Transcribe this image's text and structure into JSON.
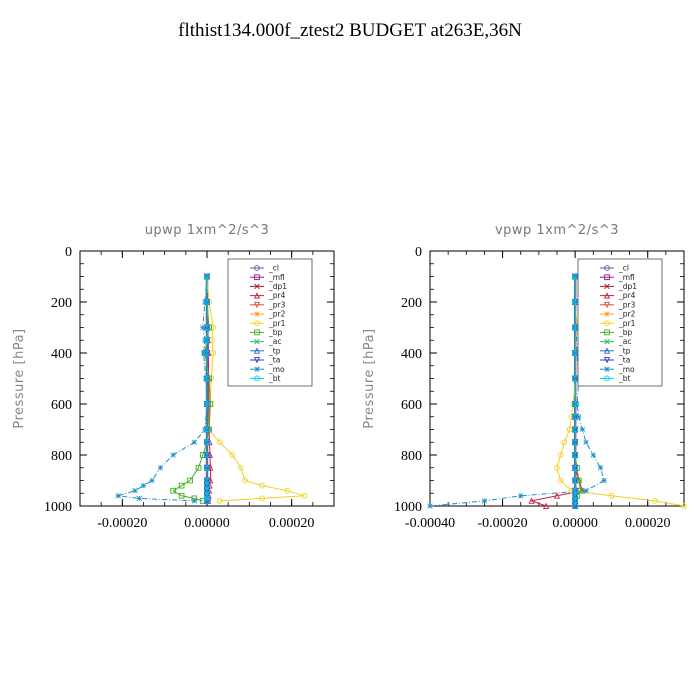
{
  "title": "flthist134.000f_ztest2  BUDGET at263E,36N",
  "legend_entries": [
    "_cl",
    "_mfl",
    "_dp1",
    "_pr4",
    "_pr3",
    "_pr2",
    "_pr1",
    "_bp",
    "_ac",
    "_tp",
    "_ta",
    "_mo",
    "_bt"
  ],
  "series_colors": {
    "_cl": "#7a4e9a",
    "_mfl": "#8b1a8b",
    "_dp1": "#a0203a",
    "_pr4": "#d01a40",
    "_pr3": "#e8503a",
    "_pr2": "#f0a030",
    "_pr1": "#f2d020",
    "_bp": "#40b020",
    "_ac": "#20c060",
    "_tp": "#3060e0",
    "_ta": "#3838c8",
    "_mo": "#1890c8",
    "_bt": "#00d0f0"
  },
  "chart_data": [
    {
      "type": "line",
      "title": "upwp   1xm^2/s^3",
      "ylabel": "Pressure [hPa]",
      "xlim": [
        -0.0003,
        0.0003
      ],
      "ylim": [
        1000,
        0
      ],
      "xticks": [
        "-0.00020",
        "0.00000",
        "0.00020"
      ],
      "yticks": [
        "0",
        "200",
        "400",
        "600",
        "800",
        "1000"
      ],
      "legend_position": "top-right",
      "y": [
        100,
        200,
        300,
        350,
        400,
        500,
        600,
        700,
        750,
        800,
        850,
        900,
        920,
        940,
        960,
        970,
        980
      ],
      "series": [
        {
          "name": "_cl",
          "x": [
            0,
            0,
            0,
            0,
            0,
            0,
            0,
            0,
            0,
            0,
            0,
            0,
            0,
            0,
            0,
            0,
            0
          ]
        },
        {
          "name": "_mfl",
          "x": [
            0,
            0,
            0,
            0,
            0,
            0,
            0,
            0,
            0,
            0,
            0,
            0,
            0,
            0,
            0,
            0,
            0
          ]
        },
        {
          "name": "_dp1",
          "x": [
            0,
            0,
            0,
            0,
            0,
            0,
            0,
            0,
            0,
            0,
            0,
            0,
            0,
            0,
            0,
            0,
            0
          ]
        },
        {
          "name": "_pr4",
          "x": [
            0,
            0,
            2e-06,
            3e-06,
            3e-06,
            4e-06,
            4e-06,
            5e-06,
            6e-06,
            7e-06,
            8e-06,
            8e-06,
            6e-06,
            5e-06,
            4e-06,
            3e-06,
            2e-06
          ]
        },
        {
          "name": "_pr3",
          "x": [
            0,
            0,
            0,
            0,
            0,
            0,
            0,
            0,
            0,
            0,
            0,
            0,
            0,
            0,
            0,
            0,
            0
          ]
        },
        {
          "name": "_pr2",
          "x": [
            0,
            0,
            0,
            0,
            0,
            0,
            0,
            0,
            0,
            0,
            0,
            0,
            0,
            0,
            0,
            0,
            0
          ]
        },
        {
          "name": "_pr1",
          "x": [
            0,
            5e-06,
            1.5e-05,
            1.2e-05,
            1.5e-05,
            1e-05,
            8e-06,
            5e-06,
            3e-05,
            6e-05,
            8e-05,
            9e-05,
            0.00013,
            0.00019,
            0.00023,
            0.00013,
            3e-05
          ]
        },
        {
          "name": "_bp",
          "x": [
            0,
            0,
            5e-06,
            0,
            -5e-06,
            5e-06,
            8e-06,
            5e-06,
            0,
            -1e-05,
            -2e-05,
            -4e-05,
            -6e-05,
            -8e-05,
            -6e-05,
            -3e-05,
            -1e-05
          ]
        },
        {
          "name": "_ac",
          "x": [
            0,
            0,
            0,
            0,
            0,
            0,
            0,
            0,
            0,
            0,
            0,
            0,
            0,
            0,
            0,
            0,
            0
          ]
        },
        {
          "name": "_tp",
          "x": [
            0,
            0,
            0,
            0,
            0,
            0,
            0,
            0,
            0,
            0,
            0,
            0,
            0,
            0,
            0,
            0,
            0
          ]
        },
        {
          "name": "_ta",
          "x": [
            0,
            0,
            0,
            0,
            0,
            0,
            0,
            0,
            0,
            0,
            0,
            0,
            0,
            0,
            0,
            0,
            0
          ]
        },
        {
          "name": "_mo",
          "x": [
            0,
            -5e-06,
            -1e-05,
            -5e-06,
            -8e-06,
            -3e-06,
            0,
            -5e-06,
            -3e-05,
            -8e-05,
            -0.00011,
            -0.00013,
            -0.00015,
            -0.00017,
            -0.00021,
            -0.00016,
            -3e-05
          ]
        },
        {
          "name": "_bt",
          "x": [
            0,
            0,
            0,
            0,
            0,
            0,
            0,
            0,
            0,
            0,
            0,
            0,
            0,
            0,
            0,
            0,
            0
          ]
        }
      ]
    },
    {
      "type": "line",
      "title": "vpwp   1xm^2/s^3",
      "ylabel": "Pressure [hPa]",
      "xlim": [
        -0.0004,
        0.0003
      ],
      "ylim": [
        1000,
        0
      ],
      "xticks": [
        "-0.00040",
        "-0.00020",
        "0.00000",
        "0.00020"
      ],
      "yticks": [
        "0",
        "200",
        "400",
        "600",
        "800",
        "1000"
      ],
      "legend_position": "top-right",
      "y": [
        100,
        200,
        300,
        400,
        500,
        600,
        650,
        700,
        750,
        800,
        850,
        900,
        940,
        960,
        980,
        1000
      ],
      "series": [
        {
          "name": "_cl",
          "x": [
            0,
            0,
            0,
            0,
            0,
            0,
            0,
            0,
            0,
            0,
            0,
            0,
            0,
            0,
            0,
            0
          ]
        },
        {
          "name": "_mfl",
          "x": [
            0,
            0,
            0,
            0,
            0,
            0,
            0,
            0,
            0,
            0,
            0,
            0,
            0,
            0,
            0,
            0
          ]
        },
        {
          "name": "_dp1",
          "x": [
            0,
            0,
            0,
            0,
            0,
            0,
            0,
            0,
            0,
            0,
            0,
            0,
            0,
            0,
            0,
            0
          ]
        },
        {
          "name": "_pr4",
          "x": [
            0,
            0,
            0,
            0,
            0,
            0,
            0,
            0,
            0,
            0,
            0,
            1e-05,
            2e-05,
            -5e-05,
            -0.00012,
            -8e-05
          ]
        },
        {
          "name": "_pr3",
          "x": [
            0,
            0,
            0,
            0,
            0,
            0,
            0,
            0,
            0,
            0,
            0,
            0,
            0,
            0,
            0,
            0
          ]
        },
        {
          "name": "_pr2",
          "x": [
            0,
            0,
            0,
            0,
            0,
            0,
            0,
            0,
            0,
            0,
            0,
            0,
            0,
            0,
            0,
            0
          ]
        },
        {
          "name": "_pr1",
          "x": [
            0,
            0,
            5e-06,
            0,
            0,
            -5e-06,
            -1e-05,
            -1.5e-05,
            -3e-05,
            -4e-05,
            -5e-05,
            -4e-05,
            -1e-05,
            0.0001,
            0.00022,
            0.0003
          ]
        },
        {
          "name": "_bp",
          "x": [
            0,
            0,
            0,
            0,
            0,
            0,
            0,
            0,
            0,
            0,
            5e-06,
            1e-05,
            1.5e-05,
            5e-06,
            0,
            0
          ]
        },
        {
          "name": "_ac",
          "x": [
            0,
            0,
            0,
            0,
            0,
            0,
            0,
            0,
            0,
            0,
            0,
            0,
            0,
            0,
            0,
            0
          ]
        },
        {
          "name": "_tp",
          "x": [
            0,
            0,
            0,
            0,
            0,
            0,
            0,
            0,
            0,
            0,
            0,
            0,
            0,
            0,
            0,
            0
          ]
        },
        {
          "name": "_ta",
          "x": [
            0,
            0,
            0,
            0,
            0,
            0,
            0,
            0,
            0,
            0,
            0,
            0,
            0,
            0,
            0,
            0
          ]
        },
        {
          "name": "_mo",
          "x": [
            0,
            0,
            3e-06,
            5e-06,
            1e-05,
            5e-06,
            1e-05,
            2e-05,
            3e-05,
            5e-05,
            7e-05,
            8e-05,
            3e-05,
            -0.00015,
            -0.00025,
            -0.0004
          ]
        },
        {
          "name": "_bt",
          "x": [
            0,
            0,
            0,
            0,
            0,
            0,
            0,
            0,
            0,
            0,
            0,
            0,
            0,
            0,
            0,
            0
          ]
        }
      ]
    }
  ]
}
